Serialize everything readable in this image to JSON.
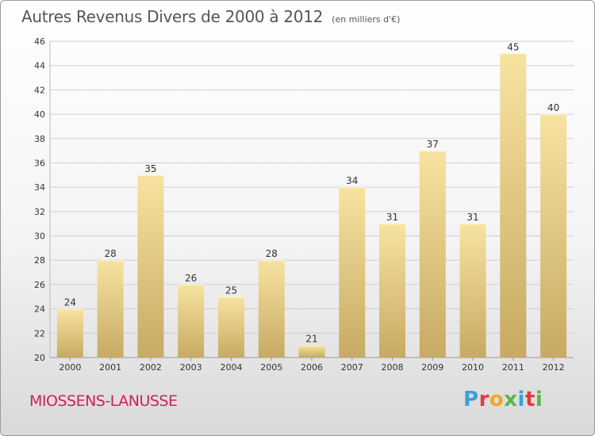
{
  "title": "Autres Revenus Divers de 2000 à 2012",
  "unit": "(en milliers d'€)",
  "city": "MIOSSENS-LANUSSE",
  "brand": "Proxiti",
  "brand_colors": [
    "#3aa0dc",
    "#e23c3c",
    "#f5a623",
    "#52b84a",
    "#3aa0dc",
    "#e23c3c",
    "#52b84a"
  ],
  "colors": {
    "bar_light": "#f7e3a0",
    "bar_dark": "#c7aa63",
    "grid": "#cfcfcf",
    "city": "#cc2255"
  },
  "chart_data": {
    "type": "bar",
    "title": "Autres Revenus Divers de 2000 à 2012",
    "categories": [
      "2000",
      "2001",
      "2002",
      "2003",
      "2004",
      "2005",
      "2006",
      "2007",
      "2008",
      "2009",
      "2010",
      "2011",
      "2012"
    ],
    "values": [
      24,
      28,
      35,
      26,
      25,
      28,
      21,
      34,
      31,
      37,
      31,
      45,
      40
    ],
    "ylim": [
      20,
      46
    ],
    "yticks": [
      20,
      22,
      24,
      26,
      28,
      30,
      32,
      34,
      36,
      38,
      40,
      42,
      44,
      46
    ],
    "grid": true,
    "data_labels": true
  }
}
